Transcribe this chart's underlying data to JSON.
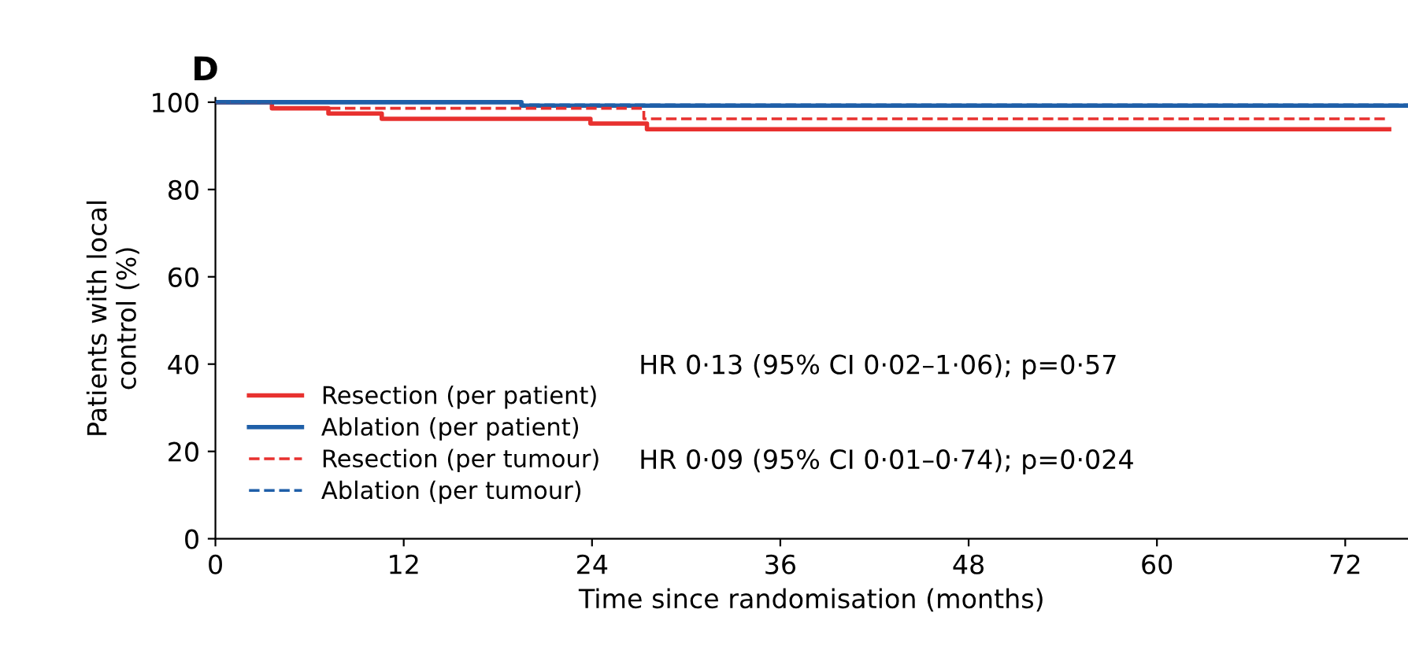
{
  "chart_data": {
    "type": "step",
    "title": "D",
    "xlabel": "Time since randomisation (months)",
    "ylabel": "Patients with local\ncontrol (%)",
    "xlim": [
      0,
      76
    ],
    "ylim": [
      0,
      101
    ],
    "xticks": [
      0,
      12,
      24,
      36,
      48,
      60,
      72
    ],
    "yticks": [
      0,
      20,
      40,
      60,
      80,
      100
    ],
    "grid": false,
    "legend": "bottom left",
    "series": [
      {
        "name": "Resection (per patient)",
        "color": "#e8312f",
        "line_style": "solid",
        "x": [
          0,
          3.6,
          7.2,
          10.6,
          23.9,
          27.5,
          74.8
        ],
        "values": [
          100,
          98.6,
          97.4,
          96.2,
          95.1,
          93.8,
          93.8
        ]
      },
      {
        "name": "Ablation (per patient)",
        "color": "#1f5fa8",
        "line_style": "solid",
        "x": [
          0,
          19.5,
          76
        ],
        "values": [
          100,
          99.2,
          99.2
        ]
      },
      {
        "name": "Resection (per tumour)",
        "color": "#e8312f",
        "line_style": "dashed",
        "x": [
          0,
          3.6,
          27.3,
          74.8
        ],
        "values": [
          100,
          98.6,
          96.2,
          96.2
        ]
      },
      {
        "name": "Ablation (per tumour)",
        "color": "#1f5fa8",
        "line_style": "dashed",
        "x": [
          0,
          19.5,
          76
        ],
        "values": [
          100,
          99.4,
          99.4
        ]
      }
    ],
    "annotations": [
      "HR 0·13 (95% CI 0·02–1·06); p=0·57",
      "HR 0·09 (95% CI 0·01–0·74); p=0·024"
    ]
  }
}
